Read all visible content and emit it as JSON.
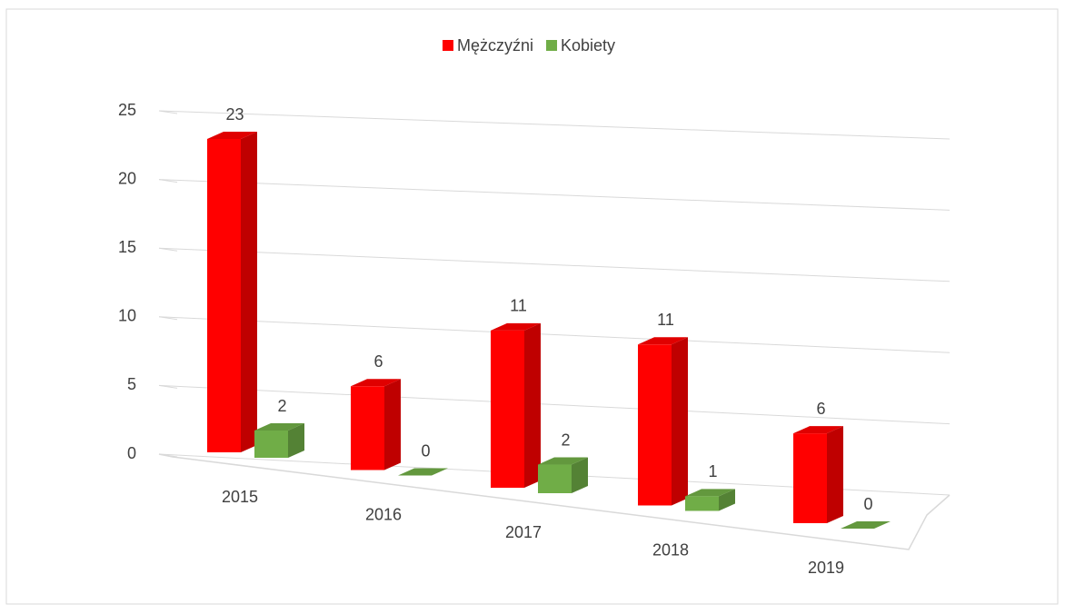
{
  "chart_data": {
    "type": "bar3d",
    "categories": [
      "2015",
      "2016",
      "2017",
      "2018",
      "2019"
    ],
    "series": [
      {
        "name": "Mężczyźni",
        "color": "#ff0000",
        "values": [
          23,
          6,
          11,
          11,
          6
        ]
      },
      {
        "name": "Kobiety",
        "color": "#70ad47",
        "values": [
          2,
          0,
          2,
          1,
          0
        ]
      }
    ],
    "ylim": [
      0,
      25
    ],
    "yticks": [
      0,
      5,
      10,
      15,
      20,
      25
    ],
    "grid": true,
    "legend": "top"
  }
}
